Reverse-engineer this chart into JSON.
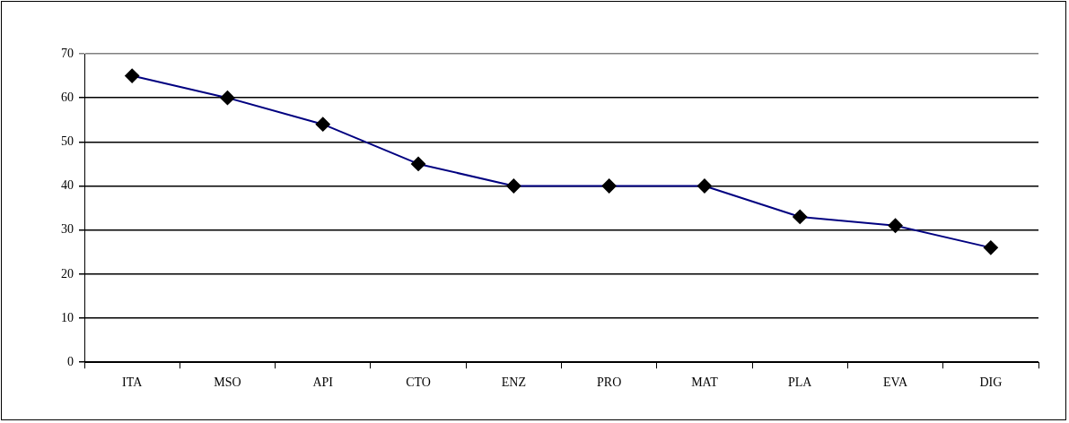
{
  "chart_data": {
    "type": "line",
    "categories": [
      "ITA",
      "MSO",
      "API",
      "CTO",
      "ENZ",
      "PRO",
      "MAT",
      "PLA",
      "EVA",
      "DIG"
    ],
    "series": [
      {
        "color": "#000080",
        "values": [
          65,
          60,
          54,
          45,
          40,
          40,
          40,
          33,
          31,
          26
        ]
      }
    ],
    "ylim": [
      0,
      70
    ],
    "yticks": [
      0,
      10,
      20,
      30,
      40,
      50,
      60,
      70
    ],
    "grid": "y",
    "legend": false,
    "marker": "diamond",
    "line_style": "solid"
  }
}
